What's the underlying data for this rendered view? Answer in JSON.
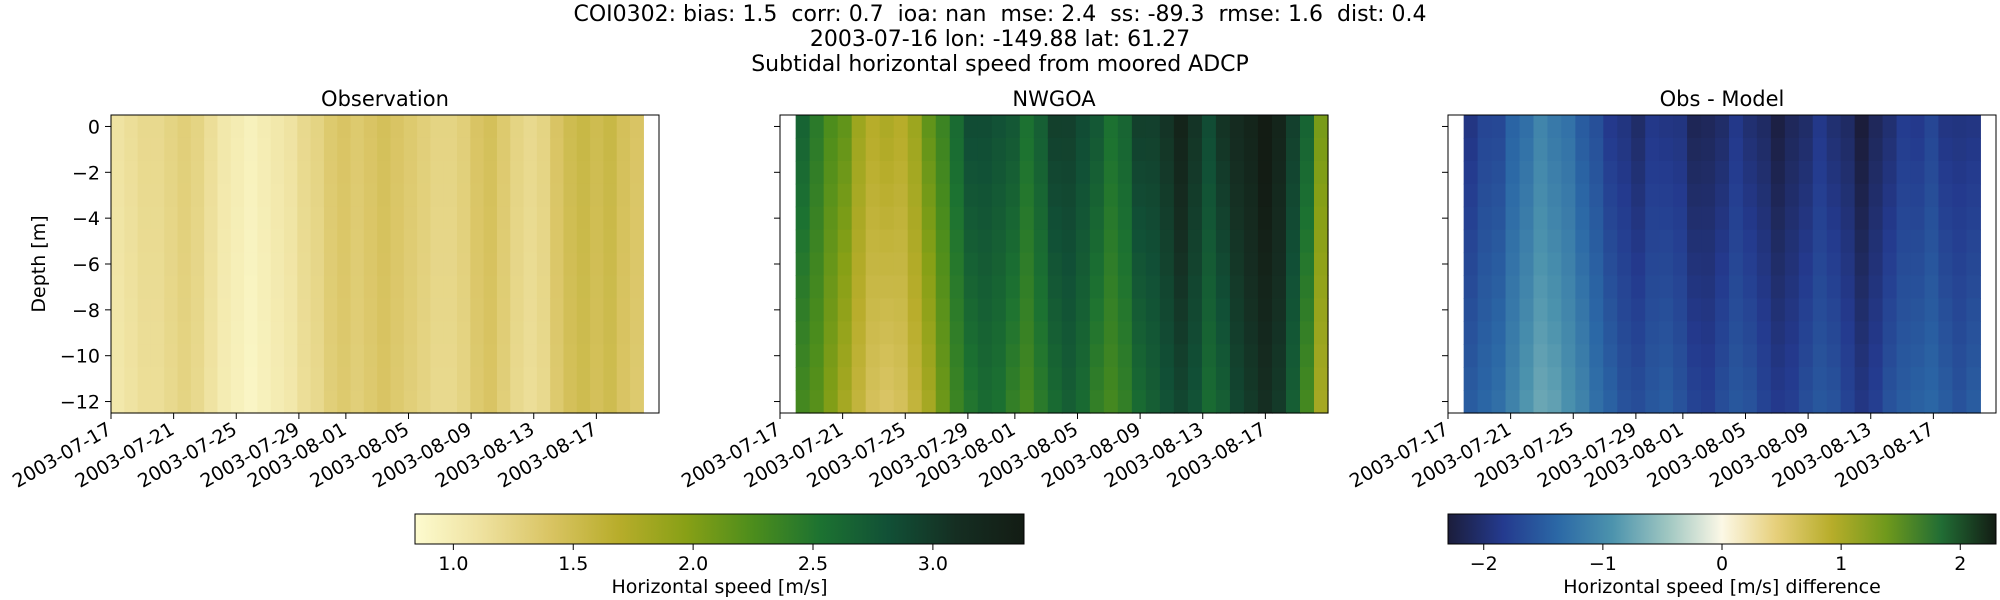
{
  "figure": {
    "title_lines": [
      "COI0302: bias: 1.5  corr: 0.7  ioa: nan  mse: 2.4  ss: -89.3  rmse: 1.6  dist: 0.4",
      "2003-07-16 lon: -149.88 lat: 61.27",
      "Subtidal horizontal speed from moored ADCP"
    ]
  },
  "chart_data": [
    {
      "type": "heatmap",
      "title": "Observation",
      "ylabel": "Depth [m]",
      "xlabel": "",
      "x_tick_labels": [
        "2003-07-17",
        "2003-07-21",
        "2003-07-25",
        "2003-07-29",
        "2003-08-01",
        "2003-08-05",
        "2003-08-09",
        "2003-08-13",
        "2003-08-17"
      ],
      "x_range": [
        "2003-07-17",
        "2003-08-21"
      ],
      "x_data_range": [
        "2003-07-17",
        "2003-08-20"
      ],
      "y_tick_labels": [
        "0",
        "−2",
        "−4",
        "−6",
        "−8",
        "−10",
        "−12"
      ],
      "ylim": [
        -12.5,
        0.5
      ],
      "colormap": "speed",
      "time_profile": [
        1.05,
        1.1,
        1.15,
        1.15,
        1.2,
        1.25,
        1.2,
        1.1,
        1.0,
        0.95,
        0.9,
        0.95,
        1.0,
        1.05,
        1.15,
        1.2,
        1.3,
        1.35,
        1.3,
        1.35,
        1.4,
        1.35,
        1.3,
        1.25,
        1.2,
        1.2,
        1.25,
        1.35,
        1.4,
        1.3,
        1.2,
        1.15,
        1.2,
        1.35,
        1.45,
        1.5,
        1.45,
        1.5,
        1.4,
        1.35
      ]
    },
    {
      "type": "heatmap",
      "title": "NWGOA",
      "ylabel": "",
      "xlabel": "",
      "x_tick_labels": [
        "2003-07-17",
        "2003-07-21",
        "2003-07-25",
        "2003-07-29",
        "2003-08-01",
        "2003-08-05",
        "2003-08-09",
        "2003-08-13",
        "2003-08-17"
      ],
      "x_range": [
        "2003-07-17",
        "2003-08-21"
      ],
      "x_data_range": [
        "2003-07-18",
        "2003-08-21"
      ],
      "ylim": [
        -12.5,
        0.5
      ],
      "colormap": "speed",
      "time_profile": [
        2.3,
        2.2,
        2.0,
        1.8,
        1.6,
        1.45,
        1.4,
        1.45,
        1.6,
        1.8,
        2.1,
        2.35,
        2.5,
        2.6,
        2.55,
        2.4,
        2.3,
        2.45,
        2.6,
        2.7,
        2.6,
        2.4,
        2.3,
        2.4,
        2.6,
        2.7,
        2.8,
        2.9,
        2.8,
        2.6,
        2.7,
        2.9,
        3.0,
        3.1,
        3.0,
        2.7,
        2.3,
        1.8
      ]
    },
    {
      "type": "heatmap",
      "title": "Obs - Model",
      "ylabel": "",
      "xlabel": "",
      "x_tick_labels": [
        "2003-07-17",
        "2003-07-21",
        "2003-07-25",
        "2003-07-29",
        "2003-08-01",
        "2003-08-05",
        "2003-08-09",
        "2003-08-13",
        "2003-08-17"
      ],
      "x_range": [
        "2003-07-17",
        "2003-08-21"
      ],
      "x_data_range": [
        "2003-07-18",
        "2003-08-20"
      ],
      "ylim": [
        -12.5,
        0.5
      ],
      "colormap": "balance-delta",
      "time_profile": [
        -1.5,
        -1.4,
        -1.3,
        -1.1,
        -0.9,
        -0.75,
        -0.8,
        -0.95,
        -1.1,
        -1.3,
        -1.45,
        -1.6,
        -1.65,
        -1.55,
        -1.5,
        -1.6,
        -1.75,
        -1.8,
        -1.65,
        -1.55,
        -1.6,
        -1.75,
        -1.85,
        -1.8,
        -1.65,
        -1.55,
        -1.6,
        -1.75,
        -1.9,
        -1.8,
        -1.6,
        -1.5,
        -1.45,
        -1.4,
        -1.5,
        -1.6,
        -1.5
      ]
    }
  ],
  "colorbars": [
    {
      "label": "Horizontal speed [m/s]",
      "range": [
        0.84,
        3.38
      ],
      "ticks": [
        1.0,
        1.5,
        2.0,
        2.5,
        3.0
      ],
      "tick_labels": [
        "1.0",
        "1.5",
        "2.0",
        "2.5",
        "3.0"
      ],
      "colors": [
        "#fdfbcf",
        "#eee19e",
        "#d9c463",
        "#b8ad2b",
        "#88a016",
        "#4c8d1c",
        "#1c7231",
        "#115036",
        "#152e22",
        "#131c14"
      ]
    },
    {
      "label": "Horizontal speed [m/s] difference",
      "range": [
        -2.3,
        2.3
      ],
      "ticks": [
        -2,
        -1,
        0,
        1,
        2
      ],
      "tick_labels": [
        "−2",
        "−1",
        "0",
        "1",
        "2"
      ],
      "colors": [
        "#1b1d3b",
        "#243a8e",
        "#2b68a6",
        "#4c93ad",
        "#9ec6c1",
        "#fcf8e6",
        "#e6cf7a",
        "#b7ad2a",
        "#6f991c",
        "#216d34",
        "#131c14"
      ]
    }
  ]
}
